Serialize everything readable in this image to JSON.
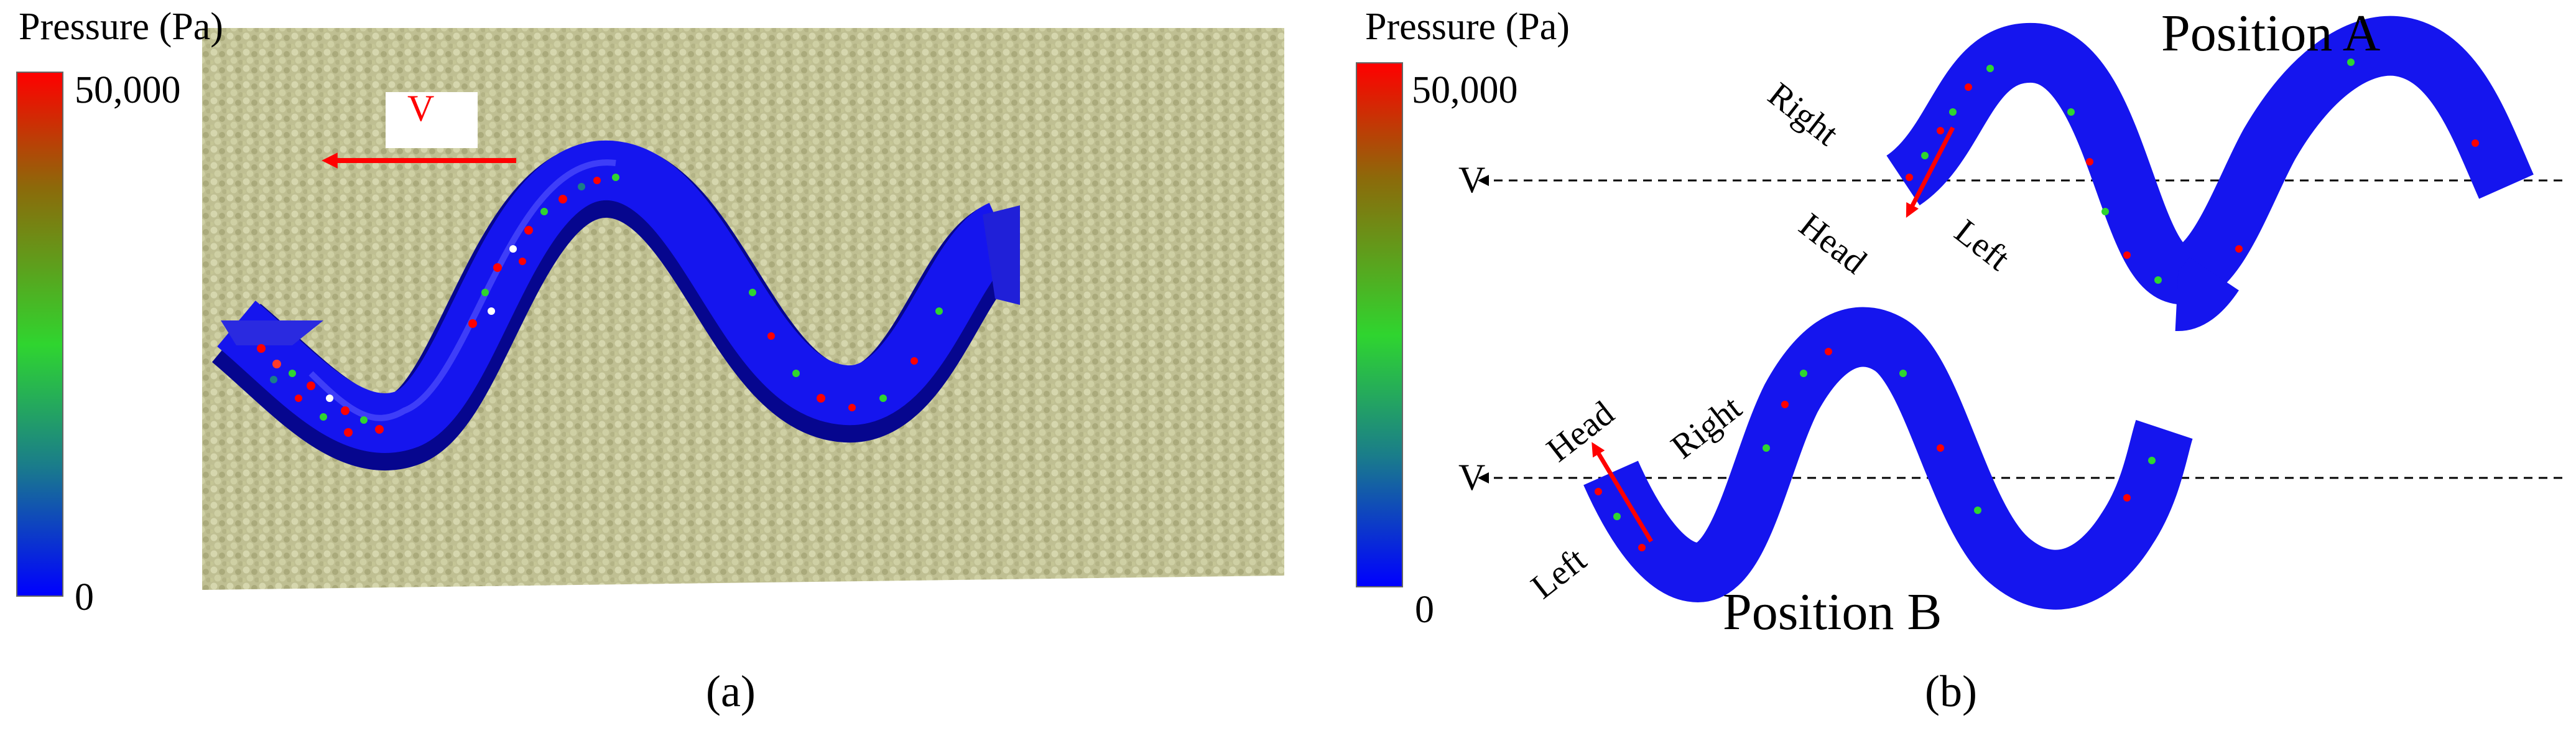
{
  "colorbar_a": {
    "title": "Pressure (Pa)",
    "max": "50,000",
    "min": "0"
  },
  "colorbar_b": {
    "title": "Pressure (Pa)",
    "max": "50,000",
    "min": "0"
  },
  "panel_a": {
    "tag": "(a)",
    "velocity_label": "V"
  },
  "panel_b": {
    "tag": "(b)",
    "position_a": {
      "title": "Position A",
      "velocity": "V",
      "right": "Right",
      "head": "Head",
      "left": "Left"
    },
    "position_b": {
      "title": "Position B",
      "velocity": "V",
      "head": "Head",
      "right": "Right",
      "left": "Left"
    }
  },
  "colors": {
    "pressure_high": "#ff0000",
    "pressure_mid": "#2fd52f",
    "pressure_low": "#0000ff",
    "body": "#1414ee",
    "particles": "#c6c99a",
    "arrow": "#ff0000"
  }
}
